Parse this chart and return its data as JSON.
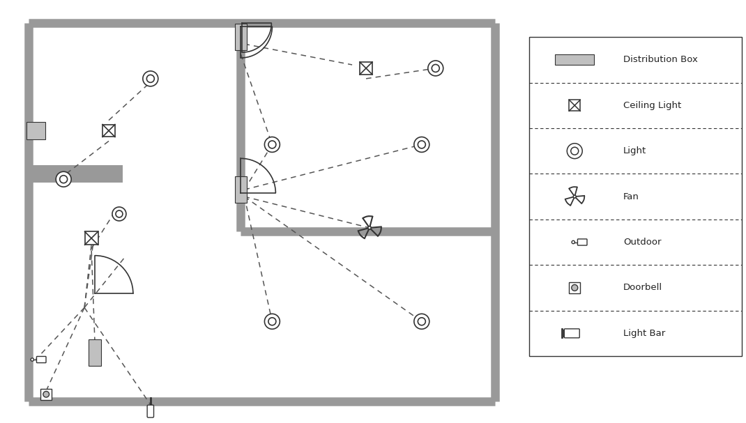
{
  "bg_color": "#ffffff",
  "wall_color": "#999999",
  "line_color": "#333333",
  "dashed_color": "#555555",
  "legend_items": [
    "Distribution Box",
    "Ceiling Light",
    "Light",
    "Fan",
    "Outdoor",
    "Doorbell",
    "Light Bar"
  ],
  "figsize": [
    10.7,
    6.07
  ],
  "wall_lw": 9,
  "wall_inner_lw": 9
}
